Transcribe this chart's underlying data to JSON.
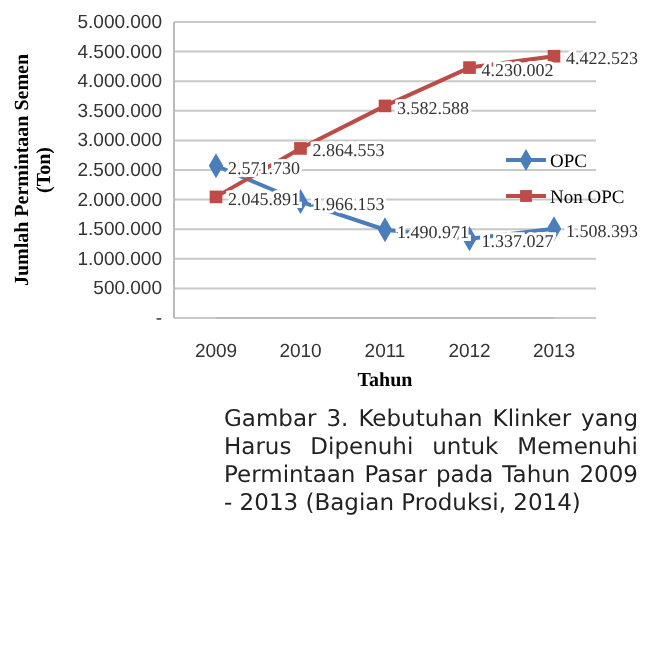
{
  "chart_data": {
    "type": "line",
    "xlabel": "Tahun",
    "ylabel": "Jumlah Permintaan Semen (Ton)",
    "categories": [
      "2009",
      "2010",
      "2011",
      "2012",
      "2013"
    ],
    "series": [
      {
        "name": "OPC",
        "color": "#4a7ebb",
        "marker": "diamond",
        "values": [
          2571730,
          1966153,
          1490971,
          1337027,
          1508393
        ],
        "value_labels": [
          "2.571.730",
          "1.966.153",
          "1.490.971",
          "1.337.027",
          "1.508.393"
        ]
      },
      {
        "name": "Non OPC",
        "color": "#be4b48",
        "marker": "square",
        "values": [
          2045891,
          2864553,
          3582588,
          4230002,
          4422523
        ],
        "value_labels": [
          "2.045.891",
          "2.864.553",
          "3.582.588",
          "4.230.002",
          "4.422.523"
        ]
      }
    ],
    "ylim": [
      0,
      5000000
    ],
    "yticks": [
      {
        "value": 0,
        "label": "-"
      },
      {
        "value": 500000,
        "label": "500.000"
      },
      {
        "value": 1000000,
        "label": "1.000.000"
      },
      {
        "value": 1500000,
        "label": "1.500.000"
      },
      {
        "value": 2000000,
        "label": "2.000.000"
      },
      {
        "value": 2500000,
        "label": "2.500.000"
      },
      {
        "value": 3000000,
        "label": "3.000.000"
      },
      {
        "value": 3500000,
        "label": "3.500.000"
      },
      {
        "value": 4000000,
        "label": "4.000.000"
      },
      {
        "value": 4500000,
        "label": "4.500.000"
      },
      {
        "value": 5000000,
        "label": "5.000.000"
      }
    ],
    "grid": "y",
    "legend": "right",
    "annotations": [
      "Gambar 3. Kebutuhan Klinker yang Harus Dipenuhi untuk Memenuhi Permintaan Pasar pada Tahun 2009 - 2013 (Bagian Produksi, 2014)"
    ]
  }
}
